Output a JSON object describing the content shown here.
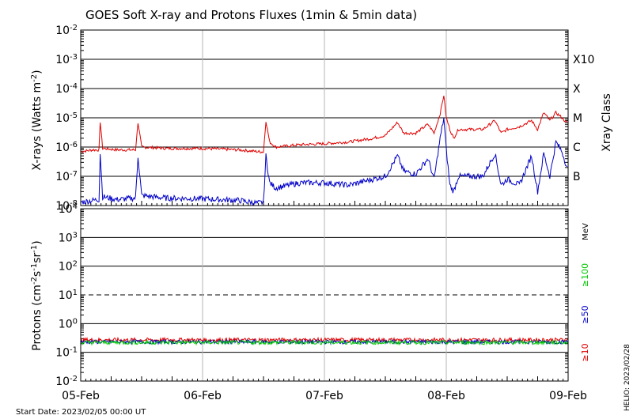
{
  "title": "GOES Soft X-ray and Protons Fluxes   (1min & 5min data)",
  "start_date": "Start Date: 2023/02/05 00:00 UT",
  "side_stamp": "HELIO: 2023/02/28",
  "colors": {
    "xray_long": "#e00000",
    "xray_short": "#0000c8",
    "p10": "#e00000",
    "p50": "#0000c8",
    "p100": "#00c800",
    "grid": "#000000",
    "vgrid": "#b4b4b4"
  },
  "chart_data": [
    {
      "type": "line",
      "name": "xray-panel",
      "ylabel": "X-rays (Watts m^-2)",
      "yscale": "log",
      "ylim": [
        1e-08,
        0.01
      ],
      "xlim": [
        0,
        4
      ],
      "x_ticks": [
        "05-Feb",
        "06-Feb",
        "07-Feb",
        "08-Feb",
        "09-Feb"
      ],
      "y_tick_labels": [
        {
          "base": "10",
          "exp": "-8"
        },
        {
          "base": "10",
          "exp": "-7"
        },
        {
          "base": "10",
          "exp": "-6"
        },
        {
          "base": "10",
          "exp": "-5"
        },
        {
          "base": "10",
          "exp": "-4"
        },
        {
          "base": "10",
          "exp": "-3"
        },
        {
          "base": "10",
          "exp": "-2"
        }
      ],
      "right_axis_title": "Xray Class",
      "class_labels": [
        {
          "label": "B",
          "value": 1e-07
        },
        {
          "label": "C",
          "value": 1e-06
        },
        {
          "label": "M",
          "value": 1e-05
        },
        {
          "label": "X",
          "value": 0.0001
        },
        {
          "label": "X10",
          "value": 0.001
        }
      ],
      "series": [
        {
          "key": "long",
          "x": [
            0,
            0.1,
            0.15,
            0.16,
            0.18,
            0.3,
            0.45,
            0.47,
            0.5,
            0.7,
            1.0,
            1.3,
            1.45,
            1.5,
            1.52,
            1.55,
            1.6,
            1.8,
            2.0,
            2.2,
            2.4,
            2.5,
            2.6,
            2.65,
            2.75,
            2.85,
            2.9,
            2.95,
            2.98,
            3.0,
            3.03,
            3.06,
            3.1,
            3.3,
            3.4,
            3.45,
            3.5,
            3.6,
            3.7,
            3.75,
            3.8,
            3.85,
            3.9,
            3.95,
            4.0
          ],
          "y": [
            7e-07,
            8e-07,
            8e-07,
            7.5e-06,
            9e-07,
            8e-07,
            8e-07,
            7e-06,
            1e-06,
            9e-07,
            9e-07,
            8e-07,
            7e-07,
            6.8e-07,
            8e-06,
            1.5e-06,
            1e-06,
            1.2e-06,
            1.3e-06,
            1.5e-06,
            2e-06,
            2.5e-06,
            7e-06,
            3e-06,
            3e-06,
            6e-06,
            3e-06,
            1.4e-05,
            6e-05,
            1e-05,
            4e-06,
            2e-06,
            4e-06,
            4e-06,
            8e-06,
            3e-06,
            4e-06,
            5e-06,
            8e-06,
            4e-06,
            1.5e-05,
            8e-06,
            1.5e-05,
            1e-05,
            6e-06
          ]
        },
        {
          "key": "short",
          "x": [
            0,
            0.1,
            0.15,
            0.16,
            0.18,
            0.3,
            0.45,
            0.47,
            0.5,
            0.7,
            1.0,
            1.3,
            1.45,
            1.5,
            1.52,
            1.55,
            1.6,
            1.8,
            2.0,
            2.2,
            2.4,
            2.5,
            2.6,
            2.65,
            2.75,
            2.85,
            2.9,
            2.95,
            2.98,
            3.0,
            3.03,
            3.06,
            3.1,
            3.3,
            3.4,
            3.45,
            3.5,
            3.6,
            3.7,
            3.75,
            3.8,
            3.85,
            3.9,
            3.95,
            4.0
          ],
          "y": [
            1.3e-08,
            1.5e-08,
            1.6e-08,
            6e-07,
            2e-08,
            1.6e-08,
            1.8e-08,
            5e-07,
            2.2e-08,
            1.8e-08,
            1.7e-08,
            1.5e-08,
            1.2e-08,
            1.3e-08,
            5e-07,
            6e-08,
            4e-08,
            6e-08,
            6e-08,
            5e-08,
            8e-08,
            1e-07,
            5e-07,
            1.5e-07,
            1.2e-07,
            4e-07,
            8e-08,
            2e-06,
            1e-05,
            8e-07,
            5e-08,
            3e-08,
            1e-07,
            1e-07,
            6e-07,
            5e-08,
            8e-08,
            5e-08,
            5e-07,
            3e-08,
            6e-07,
            1e-07,
            1.5e-06,
            7e-07,
            1.5e-07
          ]
        }
      ]
    },
    {
      "type": "line",
      "name": "proton-panel",
      "ylabel": "Protons (cm^-2s^-1sr^-1)",
      "yscale": "log",
      "ylim": [
        0.01,
        10000.0
      ],
      "xlim": [
        0,
        4
      ],
      "x_ticks": [
        "05-Feb",
        "06-Feb",
        "07-Feb",
        "08-Feb",
        "09-Feb"
      ],
      "y_tick_labels": [
        {
          "base": "10",
          "exp": "-2"
        },
        {
          "base": "10",
          "exp": "-1"
        },
        {
          "base": "10",
          "exp": "0"
        },
        {
          "base": "10",
          "exp": "1"
        },
        {
          "base": "10",
          "exp": "2"
        },
        {
          "base": "10",
          "exp": "3"
        },
        {
          "base": "10",
          "exp": "4"
        }
      ],
      "threshold": 10,
      "right_labels": {
        "unit": "MeV",
        "p100": "≥100",
        "p50": "≥50",
        "p10": "≥10"
      },
      "series": [
        {
          "key": "p10",
          "baseline": 0.27
        },
        {
          "key": "p50",
          "baseline": 0.23
        },
        {
          "key": "p100",
          "baseline": 0.22
        }
      ]
    }
  ]
}
